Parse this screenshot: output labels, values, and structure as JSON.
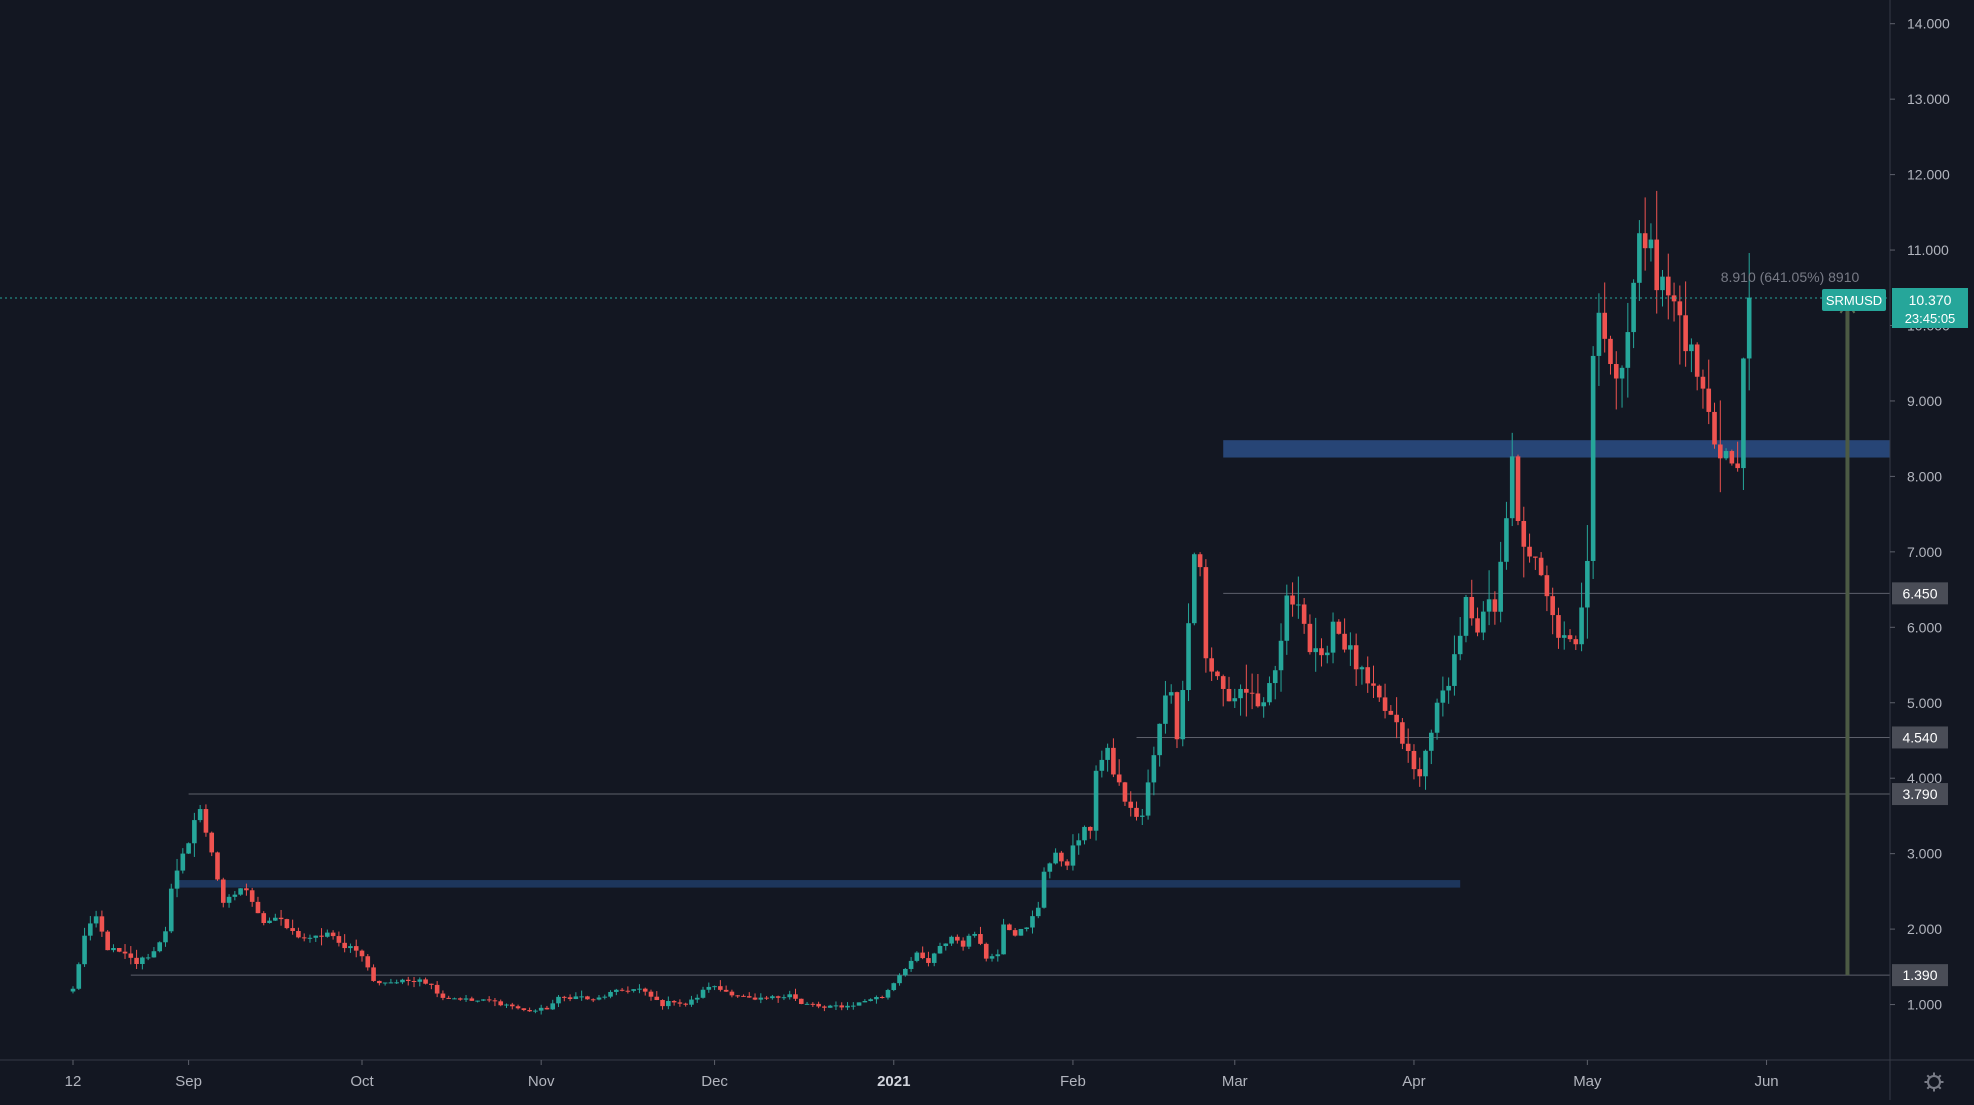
{
  "chart_data": {
    "type": "candlestick",
    "symbol": "SRMUSD",
    "last_price": "10.370",
    "countdown": "23:45:05",
    "measure_label": "8.910 (641.05%) 8910",
    "y_axis": {
      "min": 0,
      "max": 14,
      "scale": "linear"
    },
    "y_ticks": [
      "1.000",
      "2.000",
      "3.000",
      "4.000",
      "5.000",
      "6.000",
      "7.000",
      "8.000",
      "9.000",
      "10.000",
      "11.000",
      "12.000",
      "13.000",
      "14.000"
    ],
    "x_ticks": [
      {
        "label": "12",
        "day": 0
      },
      {
        "label": "Sep",
        "day": 20
      },
      {
        "label": "Oct",
        "day": 50
      },
      {
        "label": "Nov",
        "day": 81
      },
      {
        "label": "Dec",
        "day": 111
      },
      {
        "label": "2021",
        "day": 142,
        "bold": true
      },
      {
        "label": "Feb",
        "day": 173
      },
      {
        "label": "Mar",
        "day": 201
      },
      {
        "label": "Apr",
        "day": 232
      },
      {
        "label": "May",
        "day": 262
      },
      {
        "label": "Jun",
        "day": 293
      }
    ],
    "price_levels": [
      {
        "label": "6.450",
        "value": 6.45,
        "from_day": 199
      },
      {
        "label": "4.540",
        "value": 4.54,
        "from_day": 184
      },
      {
        "label": "3.790",
        "value": 3.79,
        "from_day": 20
      },
      {
        "label": "1.390",
        "value": 1.39,
        "from_day": 10
      }
    ],
    "zones": [
      {
        "from_day": 199,
        "to_day": 330,
        "low": 8.25,
        "high": 8.48,
        "color": "#2a4a7f"
      },
      {
        "from_day": 18,
        "to_day": 240,
        "low": 2.55,
        "high": 2.65,
        "color": "#1f3a63"
      }
    ],
    "measure_arrow": {
      "day": 307,
      "from": 1.39,
      "to": 10.3
    },
    "colors": {
      "up": "#26a69a",
      "down": "#ef5350",
      "bg": "#131722",
      "text": "#b2b5be",
      "last_price": "#26a69a"
    },
    "anchors": [
      [
        0,
        1.2
      ],
      [
        2,
        1.9
      ],
      [
        4,
        2.15
      ],
      [
        6,
        1.75
      ],
      [
        9,
        1.65
      ],
      [
        11,
        1.55
      ],
      [
        14,
        1.7
      ],
      [
        16,
        2.0
      ],
      [
        17,
        2.5
      ],
      [
        19,
        2.95
      ],
      [
        21,
        3.45
      ],
      [
        22,
        3.55
      ],
      [
        24,
        3.05
      ],
      [
        26,
        2.3
      ],
      [
        29,
        2.55
      ],
      [
        31,
        2.4
      ],
      [
        33,
        2.1
      ],
      [
        35,
        2.15
      ],
      [
        38,
        1.95
      ],
      [
        41,
        1.85
      ],
      [
        44,
        1.95
      ],
      [
        46,
        1.8
      ],
      [
        49,
        1.75
      ],
      [
        51,
        1.5
      ],
      [
        52,
        1.3
      ],
      [
        55,
        1.3
      ],
      [
        57,
        1.3
      ],
      [
        60,
        1.35
      ],
      [
        62,
        1.25
      ],
      [
        64,
        1.1
      ],
      [
        67,
        1.08
      ],
      [
        69,
        1.05
      ],
      [
        72,
        1.05
      ],
      [
        76,
        0.98
      ],
      [
        78,
        0.92
      ],
      [
        80,
        0.92
      ],
      [
        82,
        0.95
      ],
      [
        84,
        1.08
      ],
      [
        86,
        1.1
      ],
      [
        88,
        1.1
      ],
      [
        90,
        1.05
      ],
      [
        93,
        1.15
      ],
      [
        96,
        1.2
      ],
      [
        98,
        1.2
      ],
      [
        100,
        1.1
      ],
      [
        102,
        1.0
      ],
      [
        104,
        1.05
      ],
      [
        106,
        1.0
      ],
      [
        108,
        1.1
      ],
      [
        110,
        1.25
      ],
      [
        112,
        1.2
      ],
      [
        114,
        1.15
      ],
      [
        116,
        1.1
      ],
      [
        118,
        1.05
      ],
      [
        120,
        1.08
      ],
      [
        122,
        1.1
      ],
      [
        124,
        1.15
      ],
      [
        126,
        1.0
      ],
      [
        128,
        1.0
      ],
      [
        130,
        0.95
      ],
      [
        132,
        0.98
      ],
      [
        134,
        0.98
      ],
      [
        136,
        1.02
      ],
      [
        138,
        1.08
      ],
      [
        140,
        1.1
      ],
      [
        142,
        1.3
      ],
      [
        144,
        1.5
      ],
      [
        146,
        1.65
      ],
      [
        148,
        1.55
      ],
      [
        150,
        1.75
      ],
      [
        152,
        1.9
      ],
      [
        154,
        1.8
      ],
      [
        156,
        1.95
      ],
      [
        157,
        1.85
      ],
      [
        158,
        1.6
      ],
      [
        160,
        1.7
      ],
      [
        161,
        2.1
      ],
      [
        163,
        1.95
      ],
      [
        165,
        2.0
      ],
      [
        167,
        2.3
      ],
      [
        168,
        2.8
      ],
      [
        170,
        2.95
      ],
      [
        172,
        2.9
      ],
      [
        174,
        3.2
      ],
      [
        176,
        3.35
      ],
      [
        177,
        4.15
      ],
      [
        179,
        4.3
      ],
      [
        181,
        3.9
      ],
      [
        183,
        3.55
      ],
      [
        185,
        3.5
      ],
      [
        187,
        4.3
      ],
      [
        189,
        5.05
      ],
      [
        190,
        5.2
      ],
      [
        191,
        4.6
      ],
      [
        192,
        5.1
      ],
      [
        193,
        6.2
      ],
      [
        194,
        7.1
      ],
      [
        195,
        6.8
      ],
      [
        196,
        5.6
      ],
      [
        198,
        5.3
      ],
      [
        200,
        5.0
      ],
      [
        202,
        5.2
      ],
      [
        204,
        5.1
      ],
      [
        206,
        4.9
      ],
      [
        208,
        5.4
      ],
      [
        210,
        6.3
      ],
      [
        212,
        6.45
      ],
      [
        214,
        5.7
      ],
      [
        216,
        5.5
      ],
      [
        218,
        6.1
      ],
      [
        220,
        5.8
      ],
      [
        222,
        5.5
      ],
      [
        224,
        5.2
      ],
      [
        226,
        5.0
      ],
      [
        228,
        4.8
      ],
      [
        230,
        4.5
      ],
      [
        232,
        4.1
      ],
      [
        233,
        4.0
      ],
      [
        235,
        4.7
      ],
      [
        237,
        5.1
      ],
      [
        239,
        5.6
      ],
      [
        241,
        6.3
      ],
      [
        243,
        5.8
      ],
      [
        244,
        6.2
      ],
      [
        246,
        6.3
      ],
      [
        247,
        7.0
      ],
      [
        249,
        8.1
      ],
      [
        250,
        7.3
      ],
      [
        252,
        7.0
      ],
      [
        254,
        6.6
      ],
      [
        256,
        6.1
      ],
      [
        258,
        5.8
      ],
      [
        260,
        5.7
      ],
      [
        262,
        7.0
      ],
      [
        263,
        9.8
      ],
      [
        264,
        10.3
      ],
      [
        266,
        9.5
      ],
      [
        267,
        9.3
      ],
      [
        269,
        10.0
      ],
      [
        271,
        11.0
      ],
      [
        273,
        11.4
      ],
      [
        274,
        10.6
      ],
      [
        276,
        10.4
      ],
      [
        278,
        10.1
      ],
      [
        280,
        9.6
      ],
      [
        282,
        9.1
      ],
      [
        284,
        8.5
      ],
      [
        286,
        8.3
      ],
      [
        288,
        8.0
      ],
      [
        289,
        9.6
      ],
      [
        290,
        10.37
      ]
    ]
  }
}
